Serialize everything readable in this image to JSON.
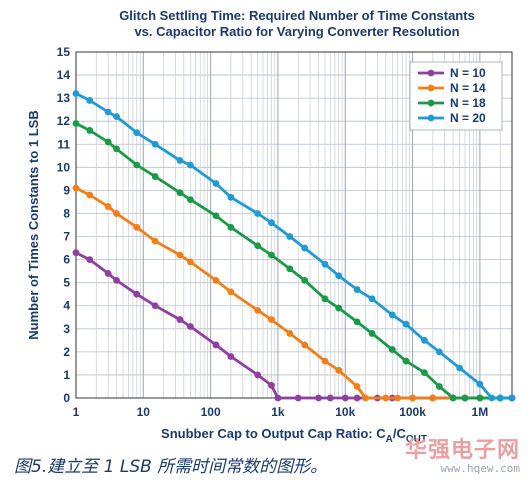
{
  "caption": "图5.建立至 1 LSB 所需时间常数的图形。",
  "watermark": {
    "main": "华强电子网",
    "sub": "www.hqew.com"
  },
  "chart_data": {
    "type": "line",
    "title": [
      "Glitch Settling Time: Required Number of Time Constants",
      "vs. Capacitor Ratio for Varying Converter Resolution"
    ],
    "xlabel": "Snubber Cap to Output Cap Ratio: C",
    "xlabel_sub_a": "A",
    "xlabel_slash": "/C",
    "xlabel_sub_out": "OUT",
    "ylabel": "Number of Times Constants to 1 LSB",
    "x_scale": "log",
    "xlim": [
      1,
      3000000
    ],
    "ylim": [
      0,
      15
    ],
    "x_ticks": [
      {
        "v": 1,
        "label": "1"
      },
      {
        "v": 10,
        "label": "10"
      },
      {
        "v": 100,
        "label": "100"
      },
      {
        "v": 1000,
        "label": "1k"
      },
      {
        "v": 10000,
        "label": "10k"
      },
      {
        "v": 100000,
        "label": "100k"
      },
      {
        "v": 1000000,
        "label": "1M"
      }
    ],
    "y_ticks": [
      "0",
      "1",
      "2",
      "3",
      "4",
      "5",
      "6",
      "7",
      "8",
      "9",
      "10",
      "11",
      "12",
      "13",
      "14",
      "15"
    ],
    "grid": true,
    "legend_position": "top-right",
    "series": [
      {
        "name": "N = 10",
        "color": "#8e3fa0",
        "points": [
          [
            1,
            6.3
          ],
          [
            1.6,
            6.0
          ],
          [
            3,
            5.4
          ],
          [
            4,
            5.1
          ],
          [
            8,
            4.5
          ],
          [
            15,
            4.0
          ],
          [
            35,
            3.4
          ],
          [
            50,
            3.1
          ],
          [
            120,
            2.3
          ],
          [
            200,
            1.8
          ],
          [
            500,
            1.0
          ],
          [
            800,
            0.55
          ],
          [
            1000,
            0
          ],
          [
            2000,
            0
          ],
          [
            4000,
            0
          ],
          [
            6000,
            0
          ],
          [
            10000,
            0
          ],
          [
            15000,
            0
          ],
          [
            30000,
            0
          ],
          [
            50000,
            0
          ],
          [
            100000,
            0
          ],
          [
            200000,
            0
          ],
          [
            400000,
            0
          ],
          [
            600000,
            0
          ],
          [
            1000000,
            0
          ],
          [
            2000000,
            0
          ],
          [
            3000000,
            0
          ]
        ]
      },
      {
        "name": "N = 14",
        "color": "#f07f1a",
        "points": [
          [
            1,
            9.1
          ],
          [
            1.6,
            8.8
          ],
          [
            3,
            8.3
          ],
          [
            4,
            8.0
          ],
          [
            8,
            7.4
          ],
          [
            15,
            6.8
          ],
          [
            35,
            6.2
          ],
          [
            50,
            5.9
          ],
          [
            120,
            5.1
          ],
          [
            200,
            4.6
          ],
          [
            500,
            3.8
          ],
          [
            800,
            3.4
          ],
          [
            1500,
            2.8
          ],
          [
            2500,
            2.3
          ],
          [
            5000,
            1.6
          ],
          [
            8000,
            1.2
          ],
          [
            15000,
            0.5
          ],
          [
            20000,
            0
          ],
          [
            40000,
            0
          ],
          [
            60000,
            0
          ],
          [
            100000,
            0
          ],
          [
            200000,
            0
          ],
          [
            400000,
            0
          ],
          [
            600000,
            0
          ],
          [
            1000000,
            0
          ],
          [
            2000000,
            0
          ],
          [
            3000000,
            0
          ]
        ]
      },
      {
        "name": "N = 18",
        "color": "#1a9a48",
        "points": [
          [
            1,
            11.9
          ],
          [
            1.6,
            11.6
          ],
          [
            3,
            11.1
          ],
          [
            4,
            10.8
          ],
          [
            8,
            10.1
          ],
          [
            15,
            9.6
          ],
          [
            35,
            8.9
          ],
          [
            50,
            8.6
          ],
          [
            120,
            7.9
          ],
          [
            200,
            7.4
          ],
          [
            500,
            6.6
          ],
          [
            800,
            6.2
          ],
          [
            1500,
            5.6
          ],
          [
            2500,
            5.1
          ],
          [
            5000,
            4.3
          ],
          [
            8000,
            3.9
          ],
          [
            15000,
            3.3
          ],
          [
            25000,
            2.8
          ],
          [
            50000,
            2.1
          ],
          [
            80000,
            1.6
          ],
          [
            150000,
            1.1
          ],
          [
            250000,
            0.5
          ],
          [
            400000,
            0
          ],
          [
            600000,
            0
          ],
          [
            1000000,
            0
          ],
          [
            2000000,
            0
          ],
          [
            3000000,
            0
          ]
        ]
      },
      {
        "name": "N = 20",
        "color": "#1f9ad2",
        "points": [
          [
            1,
            13.2
          ],
          [
            1.6,
            12.9
          ],
          [
            3,
            12.4
          ],
          [
            4,
            12.2
          ],
          [
            8,
            11.5
          ],
          [
            15,
            11.0
          ],
          [
            35,
            10.3
          ],
          [
            50,
            10.1
          ],
          [
            120,
            9.3
          ],
          [
            200,
            8.7
          ],
          [
            500,
            8.0
          ],
          [
            800,
            7.6
          ],
          [
            1500,
            7.0
          ],
          [
            2500,
            6.5
          ],
          [
            5000,
            5.8
          ],
          [
            8000,
            5.3
          ],
          [
            15000,
            4.7
          ],
          [
            25000,
            4.3
          ],
          [
            50000,
            3.6
          ],
          [
            80000,
            3.2
          ],
          [
            150000,
            2.5
          ],
          [
            250000,
            2.0
          ],
          [
            500000,
            1.3
          ],
          [
            1000000,
            0.6
          ],
          [
            1500000,
            0
          ],
          [
            2000000,
            0
          ],
          [
            3000000,
            0
          ]
        ]
      }
    ]
  }
}
